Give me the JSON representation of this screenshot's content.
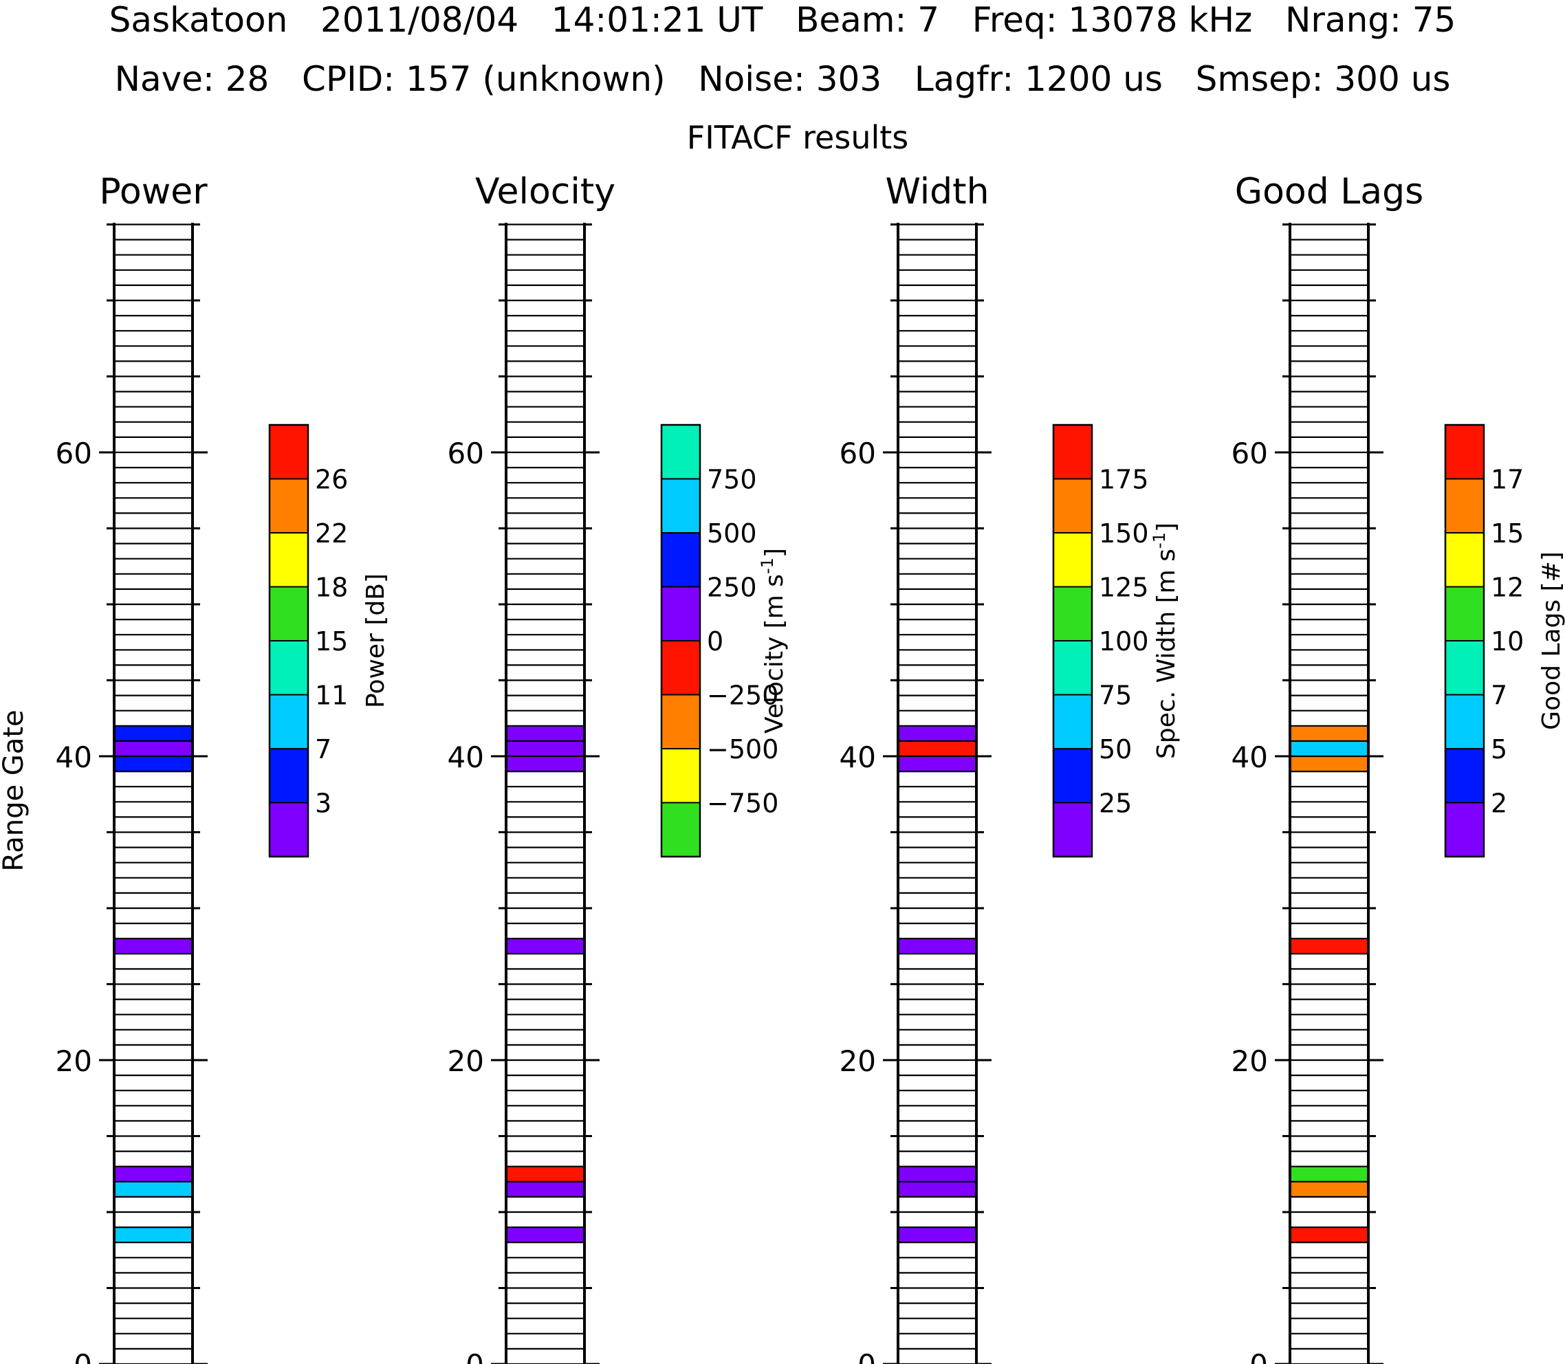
{
  "header": {
    "line1": "Saskatoon   2011/08/04   14:01:21 UT   Beam: 7   Freq: 13078 kHz   Nrang: 75",
    "line2": "Nave: 28   CPID: 157 (unknown)   Noise: 303   Lagfr: 1200 us   Smsep: 300 us",
    "subtitle": "FITACF results"
  },
  "y_axis_label": "Range Gate",
  "colors": {
    "purple": "#8000ff",
    "blue": "#0018ff",
    "cyan": "#00ccff",
    "aqua": "#00f0b8",
    "green": "#30e020",
    "yellow": "#ffff00",
    "orange": "#ff8000",
    "red": "#ff1400"
  },
  "chart_data": [
    {
      "type": "heatmap",
      "title": "Power",
      "ylabel": "Range Gate",
      "ylim": [
        0,
        75
      ],
      "yticks": [
        "0",
        "20",
        "40",
        "60"
      ],
      "colorbar": {
        "label": "Power [dB]",
        "colors": [
          "purple",
          "blue",
          "cyan",
          "aqua",
          "green",
          "yellow",
          "orange",
          "red"
        ],
        "ticks": [
          "3",
          "7",
          "11",
          "15",
          "18",
          "22",
          "26"
        ]
      },
      "cells": [
        {
          "gate": 8,
          "color": "cyan"
        },
        {
          "gate": 11,
          "color": "cyan"
        },
        {
          "gate": 12,
          "color": "purple"
        },
        {
          "gate": 27,
          "color": "purple"
        },
        {
          "gate": 39,
          "color": "blue"
        },
        {
          "gate": 40,
          "color": "purple"
        },
        {
          "gate": 41,
          "color": "blue"
        }
      ]
    },
    {
      "type": "heatmap",
      "title": "Velocity",
      "ylim": [
        0,
        75
      ],
      "yticks": [
        "0",
        "20",
        "40",
        "60"
      ],
      "colorbar": {
        "label": "Velocity [m s-1]",
        "colors": [
          "green",
          "yellow",
          "orange",
          "red",
          "purple",
          "blue",
          "cyan",
          "aqua"
        ],
        "ticks": [
          "−750",
          "−500",
          "−250",
          "0",
          "250",
          "500",
          "750"
        ]
      },
      "cells": [
        {
          "gate": 8,
          "color": "purple"
        },
        {
          "gate": 11,
          "color": "purple"
        },
        {
          "gate": 12,
          "color": "red"
        },
        {
          "gate": 27,
          "color": "purple"
        },
        {
          "gate": 39,
          "color": "purple"
        },
        {
          "gate": 40,
          "color": "purple"
        },
        {
          "gate": 41,
          "color": "purple"
        }
      ]
    },
    {
      "type": "heatmap",
      "title": "Width",
      "ylim": [
        0,
        75
      ],
      "yticks": [
        "0",
        "20",
        "40",
        "60"
      ],
      "colorbar": {
        "label": "Spec. Width [m s-1]",
        "colors": [
          "purple",
          "blue",
          "cyan",
          "aqua",
          "green",
          "yellow",
          "orange",
          "red"
        ],
        "ticks": [
          "25",
          "50",
          "75",
          "100",
          "125",
          "150",
          "175"
        ]
      },
      "cells": [
        {
          "gate": 8,
          "color": "purple"
        },
        {
          "gate": 11,
          "color": "purple"
        },
        {
          "gate": 12,
          "color": "purple"
        },
        {
          "gate": 27,
          "color": "purple"
        },
        {
          "gate": 39,
          "color": "purple"
        },
        {
          "gate": 40,
          "color": "red"
        },
        {
          "gate": 41,
          "color": "purple"
        }
      ]
    },
    {
      "type": "heatmap",
      "title": "Good Lags",
      "ylim": [
        0,
        75
      ],
      "yticks": [
        "0",
        "20",
        "40",
        "60"
      ],
      "colorbar": {
        "label": "Good Lags [#]",
        "colors": [
          "purple",
          "blue",
          "cyan",
          "aqua",
          "green",
          "yellow",
          "orange",
          "red"
        ],
        "ticks": [
          "2",
          "5",
          "7",
          "10",
          "12",
          "15",
          "17"
        ]
      },
      "cells": [
        {
          "gate": 8,
          "color": "red"
        },
        {
          "gate": 11,
          "color": "orange"
        },
        {
          "gate": 12,
          "color": "green"
        },
        {
          "gate": 27,
          "color": "red"
        },
        {
          "gate": 39,
          "color": "orange"
        },
        {
          "gate": 40,
          "color": "cyan"
        },
        {
          "gate": 41,
          "color": "orange"
        }
      ]
    }
  ]
}
